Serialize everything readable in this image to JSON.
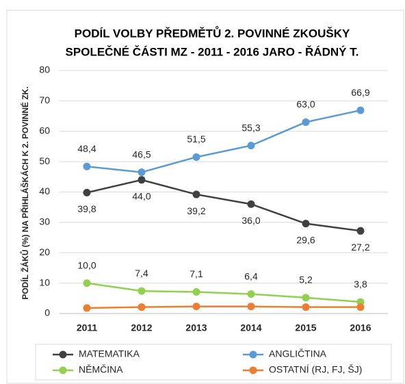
{
  "chart_data": {
    "type": "line",
    "title": [
      "PODÍL VOLBY PŘEDMĚTŮ 2. POVINNÉ ZKOUŠKY",
      "SPOLEČNÉ ČÁSTI MZ - 2011 - 2016 JARO - ŘÁDNÝ T."
    ],
    "y_label": "PODÍL ŽÁKŮ (%) NA PŘIHLÁŠKÁCH K 2. POVINNÉ ZK.",
    "categories": [
      "2011",
      "2012",
      "2013",
      "2014",
      "2015",
      "2016"
    ],
    "ylim": [
      0,
      80
    ],
    "yticks": [
      0,
      10,
      20,
      30,
      40,
      50,
      60,
      70,
      80
    ],
    "grid": true,
    "legend": "bottom",
    "series": [
      {
        "name": "MATEMATIKA",
        "color": "#404040",
        "values": [
          39.8,
          44.0,
          39.2,
          36.0,
          29.6,
          27.2
        ],
        "value_labels": [
          "39,8",
          "44,0",
          "39,2",
          "36,0",
          "29,6",
          "27,2"
        ]
      },
      {
        "name": "ANGLIČTINA",
        "color": "#5b9bd5",
        "values": [
          48.4,
          46.5,
          51.5,
          55.3,
          63.0,
          66.9
        ],
        "value_labels": [
          "48,4",
          "46,5",
          "51,5",
          "55,3",
          "63,0",
          "66,9"
        ]
      },
      {
        "name": "NĚMČINA",
        "color": "#92d050",
        "values": [
          10.0,
          7.4,
          7.1,
          6.4,
          5.2,
          3.8
        ],
        "value_labels": [
          "10,0",
          "7,4",
          "7,1",
          "6,4",
          "5,2",
          "3,8"
        ]
      },
      {
        "name": "OSTATNÍ (RJ, FJ, ŠJ)",
        "color": "#ed7d31",
        "values": [
          1.8,
          2.1,
          2.3,
          2.3,
          2.1,
          2.1
        ]
      }
    ]
  }
}
